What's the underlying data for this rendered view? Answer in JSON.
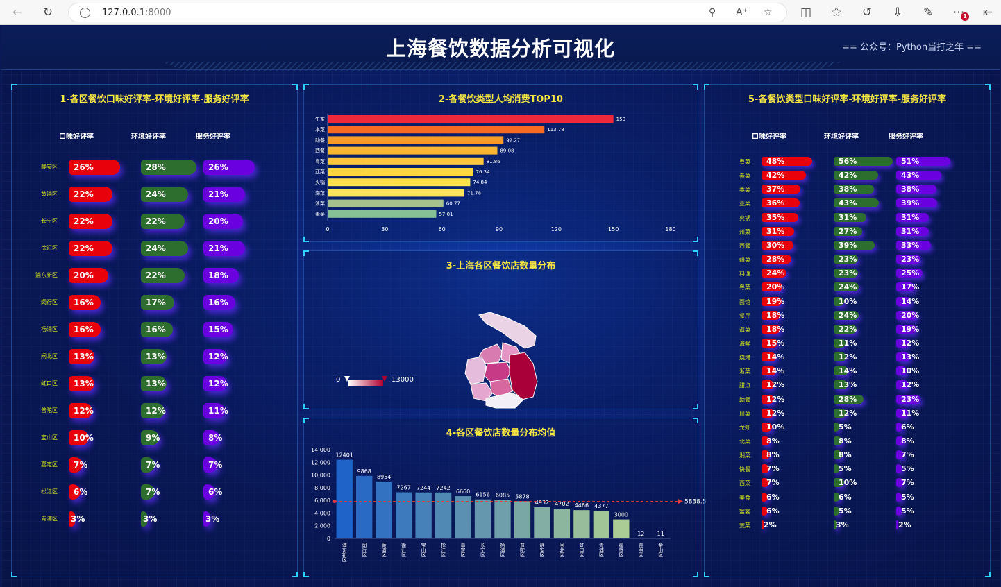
{
  "browser": {
    "url_host": "127.0.0.1",
    "url_port": ":8000"
  },
  "header": {
    "title": "上海餐饮数据分析可视化",
    "subtitle": "== 公众号：Python当打之年 =="
  },
  "panel1": {
    "title": "1-各区餐饮口味好评率-环境好评率-服务好评率",
    "columns": [
      "口味好评率",
      "环境好评率",
      "服务好评率"
    ],
    "rows": [
      {
        "district": "静安区",
        "taste": 26,
        "env": 28,
        "service": 26
      },
      {
        "district": "黄浦区",
        "taste": 22,
        "env": 24,
        "service": 21
      },
      {
        "district": "长宁区",
        "taste": 22,
        "env": 22,
        "service": 20
      },
      {
        "district": "徐汇区",
        "taste": 22,
        "env": 24,
        "service": 21
      },
      {
        "district": "浦东新区",
        "taste": 20,
        "env": 22,
        "service": 18
      },
      {
        "district": "闵行区",
        "taste": 16,
        "env": 17,
        "service": 16
      },
      {
        "district": "杨浦区",
        "taste": 16,
        "env": 16,
        "service": 15
      },
      {
        "district": "闸北区",
        "taste": 13,
        "env": 13,
        "service": 12
      },
      {
        "district": "虹口区",
        "taste": 13,
        "env": 13,
        "service": 12
      },
      {
        "district": "普陀区",
        "taste": 12,
        "env": 12,
        "service": 11
      },
      {
        "district": "宝山区",
        "taste": 10,
        "env": 9,
        "service": 8
      },
      {
        "district": "嘉定区",
        "taste": 7,
        "env": 7,
        "service": 7
      },
      {
        "district": "松江区",
        "taste": 6,
        "env": 7,
        "service": 6
      },
      {
        "district": "青浦区",
        "taste": 3,
        "env": 3,
        "service": 3
      }
    ]
  },
  "panel2": {
    "title": "2-各餐饮类型人均消费TOP10",
    "chart_data": {
      "type": "bar",
      "orientation": "horizontal",
      "categories": [
        "午茶",
        "本菜",
        "助餐",
        "西餐",
        "粤菜",
        "亚菜",
        "火锅",
        "海菜",
        "浙菜",
        "素菜"
      ],
      "values": [
        150,
        113.78,
        92.27,
        89.08,
        81.86,
        76.34,
        74.84,
        71.78,
        60.77,
        57.01
      ],
      "colors": [
        "#f0283c",
        "#f76a22",
        "#f99b2b",
        "#fbb432",
        "#fcc83a",
        "#fdd63e",
        "#fde04a",
        "#fce35a",
        "#a6c18c",
        "#86c195"
      ],
      "xlim": [
        0,
        180
      ],
      "xticks": [
        0,
        30,
        60,
        90,
        120,
        150,
        180
      ]
    }
  },
  "panel3": {
    "title": "3-上海各区餐饮店数量分布",
    "chart_data": {
      "type": "map",
      "visual_min": 0,
      "visual_max": 13000,
      "min_label": "0",
      "max_label": "13000"
    }
  },
  "panel4": {
    "title": "4-各区餐饮店数量分布均值",
    "chart_data": {
      "type": "bar",
      "categories": [
        "浦东新区",
        "闵行区",
        "黄浦区",
        "徐汇区",
        "宝山区",
        "松江区",
        "嘉定区",
        "长宁区",
        "杨浦区",
        "普陀区",
        "静安区",
        "闸北区",
        "虹口区",
        "青浦区",
        "奉贤区",
        "崇明区",
        "金山区"
      ],
      "values": [
        12401,
        9868,
        8954,
        7267,
        7244,
        7242,
        6660,
        6156,
        6085,
        5878,
        4932,
        4702,
        4466,
        4377,
        3000,
        12,
        11
      ],
      "ylim": [
        0,
        14000
      ],
      "yticks": [
        "0",
        "2,000",
        "4,000",
        "6,000",
        "8,000",
        "10,000",
        "12,000",
        "14,000"
      ],
      "mean_line": 5838.5,
      "mean_label": "5838.5"
    }
  },
  "panel5": {
    "title": "5-各餐饮类型口味好评率-环境好评率-服务好评率",
    "columns": [
      "口味好评率",
      "环境好评率",
      "服务好评率"
    ],
    "rows": [
      {
        "type": "粤菜",
        "taste": 48,
        "env": 56,
        "service": 51
      },
      {
        "type": "素菜",
        "taste": 42,
        "env": 42,
        "service": 43
      },
      {
        "type": "本菜",
        "taste": 37,
        "env": 38,
        "service": 38
      },
      {
        "type": "亚菜",
        "taste": 36,
        "env": 43,
        "service": 39
      },
      {
        "type": "火锅",
        "taste": 35,
        "env": 31,
        "service": 31
      },
      {
        "type": "州菜",
        "taste": 31,
        "env": 27,
        "service": 31
      },
      {
        "type": "西餐",
        "taste": 30,
        "env": 39,
        "service": 33
      },
      {
        "type": "疆菜",
        "taste": 28,
        "env": 23,
        "service": 23
      },
      {
        "type": "料理",
        "taste": 24,
        "env": 23,
        "service": 25
      },
      {
        "type": "粤菜",
        "taste": 20,
        "env": 24,
        "service": 17
      },
      {
        "type": "面馆",
        "taste": 19,
        "env": 10,
        "service": 14
      },
      {
        "type": "餐厅",
        "taste": 18,
        "env": 24,
        "service": 20
      },
      {
        "type": "海菜",
        "taste": 18,
        "env": 22,
        "service": 19
      },
      {
        "type": "海鲜",
        "taste": 15,
        "env": 11,
        "service": 12
      },
      {
        "type": "烧烤",
        "taste": 14,
        "env": 12,
        "service": 13
      },
      {
        "type": "浙菜",
        "taste": 14,
        "env": 14,
        "service": 10
      },
      {
        "type": "甜点",
        "taste": 12,
        "env": 13,
        "service": 12
      },
      {
        "type": "助餐",
        "taste": 12,
        "env": 28,
        "service": 23
      },
      {
        "type": "川菜",
        "taste": 12,
        "env": 12,
        "service": 11
      },
      {
        "type": "龙虾",
        "taste": 10,
        "env": 5,
        "service": 6
      },
      {
        "type": "北菜",
        "taste": 8,
        "env": 8,
        "service": 8
      },
      {
        "type": "湘菜",
        "taste": 8,
        "env": 8,
        "service": 7
      },
      {
        "type": "快餐",
        "taste": 7,
        "env": 5,
        "service": 5
      },
      {
        "type": "西菜",
        "taste": 7,
        "env": 10,
        "service": 7
      },
      {
        "type": "美食",
        "taste": 6,
        "env": 6,
        "service": 5
      },
      {
        "type": "蟹宴",
        "taste": 6,
        "env": 5,
        "service": 5
      },
      {
        "type": "荒菜",
        "taste": 2,
        "env": 3,
        "service": 2
      }
    ]
  }
}
